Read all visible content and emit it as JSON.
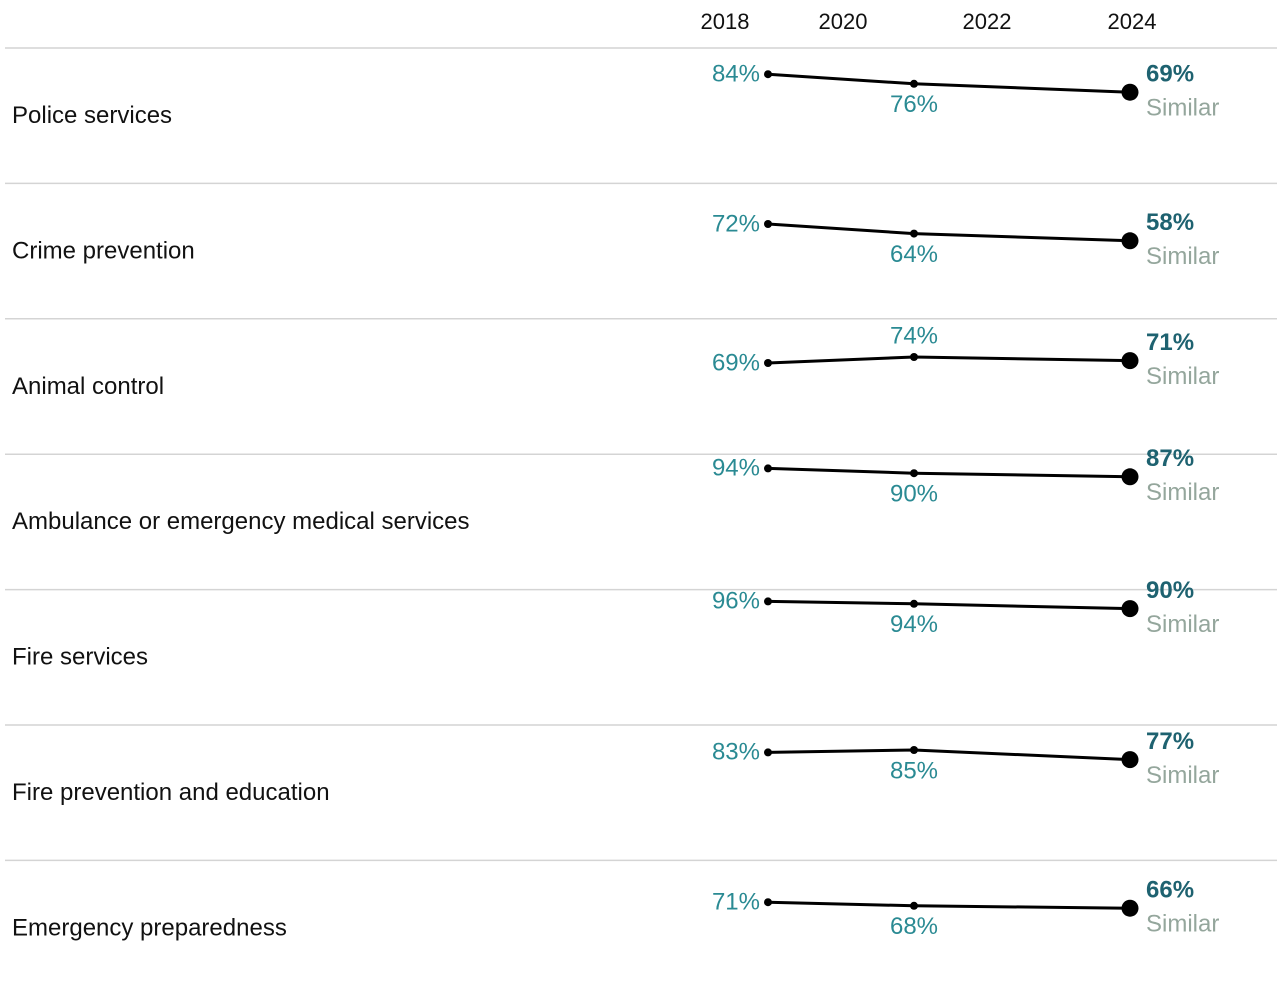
{
  "header": {
    "years": [
      "2018",
      "2020",
      "2022",
      "2024"
    ]
  },
  "rows": [
    {
      "label": "Police services",
      "values": [
        84,
        76,
        69
      ],
      "value_labels": [
        "84%",
        "76%",
        "69%"
      ],
      "comparison": "Similar"
    },
    {
      "label": "Crime prevention",
      "values": [
        72,
        64,
        58
      ],
      "value_labels": [
        "72%",
        "64%",
        "58%"
      ],
      "comparison": "Similar"
    },
    {
      "label": "Animal control",
      "values": [
        69,
        74,
        71
      ],
      "value_labels": [
        "69%",
        "74%",
        "71%"
      ],
      "comparison": "Similar"
    },
    {
      "label": "Ambulance or emergency medical services",
      "values": [
        94,
        90,
        87
      ],
      "value_labels": [
        "94%",
        "90%",
        "87%"
      ],
      "comparison": "Similar"
    },
    {
      "label": "Fire services",
      "values": [
        96,
        94,
        90
      ],
      "value_labels": [
        "96%",
        "94%",
        "90%"
      ],
      "comparison": "Similar"
    },
    {
      "label": "Fire prevention and education",
      "values": [
        83,
        85,
        77
      ],
      "value_labels": [
        "83%",
        "85%",
        "77%"
      ],
      "comparison": "Similar"
    },
    {
      "label": "Emergency preparedness",
      "values": [
        71,
        68,
        66
      ],
      "value_labels": [
        "71%",
        "68%",
        "66%"
      ],
      "comparison": "Similar"
    }
  ]
}
